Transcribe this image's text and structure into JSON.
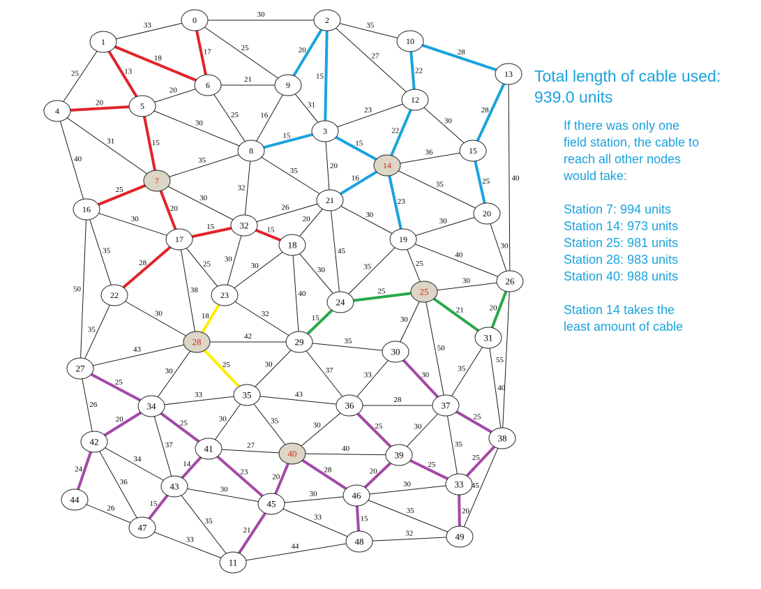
{
  "colors": {
    "red": "#e0242a",
    "blue": "#1aa3dd",
    "green": "#2aa84a",
    "purple": "#a24aa6",
    "yellow": "#ffee00",
    "station_fill": "#dcd6c6",
    "station_text": "#e02020",
    "panel_text": "#1aa3dd"
  },
  "panel": {
    "total_line1": "Total length of cable used:",
    "total_line2": "939.0 units",
    "intro_lines": [
      "If there was only one",
      "field station, the cable to",
      "reach all other nodes",
      "would take:"
    ],
    "stations": [
      "Station 7: 994 units",
      "Station 14: 973 units",
      "Station 25: 981 units",
      "Station 28: 983 units",
      "Station 40: 988 units"
    ],
    "conclusion_lines": [
      "Station 14 takes the",
      "least amount of cable"
    ]
  },
  "nodes": [
    {
      "id": "0",
      "label": "0"
    },
    {
      "id": "1",
      "label": "1"
    },
    {
      "id": "2",
      "label": "2"
    },
    {
      "id": "3",
      "label": "3"
    },
    {
      "id": "4",
      "label": "4"
    },
    {
      "id": "5",
      "label": "5"
    },
    {
      "id": "6",
      "label": "6"
    },
    {
      "id": "7",
      "label": "7",
      "station": true
    },
    {
      "id": "8",
      "label": "8"
    },
    {
      "id": "9",
      "label": "9"
    },
    {
      "id": "10",
      "label": "10"
    },
    {
      "id": "11",
      "label": "11"
    },
    {
      "id": "12",
      "label": "12"
    },
    {
      "id": "13",
      "label": "13"
    },
    {
      "id": "14",
      "label": "14",
      "station": true
    },
    {
      "id": "15",
      "label": "15"
    },
    {
      "id": "16",
      "label": "16"
    },
    {
      "id": "17",
      "label": "17"
    },
    {
      "id": "18",
      "label": "18"
    },
    {
      "id": "19",
      "label": "19"
    },
    {
      "id": "20",
      "label": "20"
    },
    {
      "id": "21",
      "label": "21"
    },
    {
      "id": "22",
      "label": "22"
    },
    {
      "id": "23",
      "label": "23"
    },
    {
      "id": "24",
      "label": "24"
    },
    {
      "id": "25",
      "label": "25",
      "station": true
    },
    {
      "id": "26",
      "label": "26"
    },
    {
      "id": "27",
      "label": "27"
    },
    {
      "id": "28",
      "label": "28",
      "station": true
    },
    {
      "id": "29",
      "label": "29"
    },
    {
      "id": "30",
      "label": "30"
    },
    {
      "id": "31",
      "label": "31"
    },
    {
      "id": "32",
      "label": "32"
    },
    {
      "id": "33",
      "label": "33"
    },
    {
      "id": "34",
      "label": "34"
    },
    {
      "id": "35",
      "label": "35"
    },
    {
      "id": "36",
      "label": "36"
    },
    {
      "id": "37",
      "label": "37"
    },
    {
      "id": "38",
      "label": "38"
    },
    {
      "id": "39",
      "label": "39"
    },
    {
      "id": "40",
      "label": "40",
      "station": true
    },
    {
      "id": "41",
      "label": "41"
    },
    {
      "id": "42",
      "label": "42"
    },
    {
      "id": "43",
      "label": "43"
    },
    {
      "id": "44",
      "label": "44"
    },
    {
      "id": "45",
      "label": "45"
    },
    {
      "id": "46",
      "label": "46"
    },
    {
      "id": "47",
      "label": "47"
    },
    {
      "id": "48",
      "label": "48"
    },
    {
      "id": "49",
      "label": "49"
    }
  ],
  "edges": [
    {
      "a": "0",
      "b": "1",
      "w": "33"
    },
    {
      "a": "0",
      "b": "2",
      "w": "30"
    },
    {
      "a": "0",
      "b": "6",
      "w": "17",
      "color": "red"
    },
    {
      "a": "0",
      "b": "9",
      "w": "25"
    },
    {
      "a": "1",
      "b": "4",
      "w": "25"
    },
    {
      "a": "1",
      "b": "5",
      "w": "13",
      "color": "red"
    },
    {
      "a": "1",
      "b": "6",
      "w": "18",
      "color": "red"
    },
    {
      "a": "2",
      "b": "9",
      "w": "20",
      "color": "blue"
    },
    {
      "a": "2",
      "b": "3",
      "w": "15",
      "color": "blue"
    },
    {
      "a": "2",
      "b": "10",
      "w": "35"
    },
    {
      "a": "2",
      "b": "12",
      "w": "27"
    },
    {
      "a": "4",
      "b": "5",
      "w": "20",
      "color": "red"
    },
    {
      "a": "4",
      "b": "7",
      "w": "31"
    },
    {
      "a": "4",
      "b": "16",
      "w": "40"
    },
    {
      "a": "5",
      "b": "6",
      "w": "20"
    },
    {
      "a": "5",
      "b": "7",
      "w": "15",
      "color": "red"
    },
    {
      "a": "5",
      "b": "8",
      "w": "30"
    },
    {
      "a": "6",
      "b": "9",
      "w": "21"
    },
    {
      "a": "6",
      "b": "8",
      "w": "25"
    },
    {
      "a": "9",
      "b": "8",
      "w": "16"
    },
    {
      "a": "9",
      "b": "3",
      "w": "31"
    },
    {
      "a": "10",
      "b": "13",
      "w": "28",
      "color": "blue"
    },
    {
      "a": "10",
      "b": "12",
      "w": "22",
      "color": "blue"
    },
    {
      "a": "3",
      "b": "12",
      "w": "23"
    },
    {
      "a": "3",
      "b": "8",
      "w": "15",
      "color": "blue"
    },
    {
      "a": "3",
      "b": "14",
      "w": "15",
      "color": "blue"
    },
    {
      "a": "3",
      "b": "21",
      "w": "20"
    },
    {
      "a": "12",
      "b": "14",
      "w": "22",
      "color": "blue"
    },
    {
      "a": "12",
      "b": "15",
      "w": "30"
    },
    {
      "a": "13",
      "b": "15",
      "w": "28",
      "color": "blue"
    },
    {
      "a": "13",
      "b": "26",
      "w": "40"
    },
    {
      "a": "14",
      "b": "15",
      "w": "36"
    },
    {
      "a": "14",
      "b": "21",
      "w": "16",
      "color": "blue"
    },
    {
      "a": "14",
      "b": "19",
      "w": "23",
      "color": "blue"
    },
    {
      "a": "14",
      "b": "20",
      "w": "35"
    },
    {
      "a": "15",
      "b": "20",
      "w": "25",
      "color": "blue"
    },
    {
      "a": "8",
      "b": "7",
      "w": "35"
    },
    {
      "a": "8",
      "b": "21",
      "w": "35"
    },
    {
      "a": "8",
      "b": "32",
      "w": "32"
    },
    {
      "a": "7",
      "b": "16",
      "w": "25",
      "color": "red"
    },
    {
      "a": "7",
      "b": "17",
      "w": "20",
      "color": "red"
    },
    {
      "a": "7",
      "b": "32",
      "w": "30"
    },
    {
      "a": "16",
      "b": "17",
      "w": "30"
    },
    {
      "a": "16",
      "b": "22",
      "w": "35"
    },
    {
      "a": "16",
      "b": "27",
      "w": "50"
    },
    {
      "a": "17",
      "b": "32",
      "w": "15",
      "color": "red"
    },
    {
      "a": "17",
      "b": "22",
      "w": "28",
      "color": "red"
    },
    {
      "a": "17",
      "b": "23",
      "w": "25"
    },
    {
      "a": "17",
      "b": "28",
      "w": "38"
    },
    {
      "a": "32",
      "b": "21",
      "w": "26"
    },
    {
      "a": "32",
      "b": "18",
      "w": "15",
      "color": "red"
    },
    {
      "a": "32",
      "b": "23",
      "w": "30"
    },
    {
      "a": "21",
      "b": "18",
      "w": "20"
    },
    {
      "a": "21",
      "b": "19",
      "w": "30"
    },
    {
      "a": "21",
      "b": "24",
      "w": "45"
    },
    {
      "a": "18",
      "b": "23",
      "w": "30"
    },
    {
      "a": "18",
      "b": "24",
      "w": "30"
    },
    {
      "a": "18",
      "b": "29",
      "w": "40"
    },
    {
      "a": "19",
      "b": "20",
      "w": "30"
    },
    {
      "a": "19",
      "b": "24",
      "w": "35"
    },
    {
      "a": "19",
      "b": "25",
      "w": "25"
    },
    {
      "a": "19",
      "b": "26",
      "w": "40"
    },
    {
      "a": "20",
      "b": "26",
      "w": "30"
    },
    {
      "a": "22",
      "b": "28",
      "w": "30"
    },
    {
      "a": "22",
      "b": "27",
      "w": "35"
    },
    {
      "a": "23",
      "b": "28",
      "w": "18",
      "color": "yellow"
    },
    {
      "a": "23",
      "b": "29",
      "w": "32"
    },
    {
      "a": "24",
      "b": "25",
      "w": "25",
      "color": "green"
    },
    {
      "a": "24",
      "b": "29",
      "w": "15",
      "color": "green"
    },
    {
      "a": "25",
      "b": "26",
      "w": "30"
    },
    {
      "a": "25",
      "b": "31",
      "w": "21",
      "color": "green"
    },
    {
      "a": "25",
      "b": "30",
      "w": "30"
    },
    {
      "a": "25",
      "b": "37",
      "w": "50"
    },
    {
      "a": "26",
      "b": "31",
      "w": "20",
      "color": "green"
    },
    {
      "a": "26",
      "b": "38",
      "w": "55"
    },
    {
      "a": "28",
      "b": "27",
      "w": "43"
    },
    {
      "a": "28",
      "b": "29",
      "w": "42"
    },
    {
      "a": "28",
      "b": "34",
      "w": "30"
    },
    {
      "a": "28",
      "b": "35",
      "w": "25",
      "color": "yellow"
    },
    {
      "a": "29",
      "b": "30",
      "w": "35"
    },
    {
      "a": "29",
      "b": "35",
      "w": "30"
    },
    {
      "a": "29",
      "b": "36",
      "w": "37"
    },
    {
      "a": "30",
      "b": "36",
      "w": "33"
    },
    {
      "a": "30",
      "b": "37",
      "w": "30",
      "color": "purple"
    },
    {
      "a": "31",
      "b": "37",
      "w": "35"
    },
    {
      "a": "31",
      "b": "38",
      "w": "40"
    },
    {
      "a": "27",
      "b": "34",
      "w": "25",
      "color": "purple"
    },
    {
      "a": "27",
      "b": "42",
      "w": "26"
    },
    {
      "a": "34",
      "b": "35",
      "w": "33"
    },
    {
      "a": "34",
      "b": "42",
      "w": "20",
      "color": "purple"
    },
    {
      "a": "34",
      "b": "41",
      "w": "25",
      "color": "purple"
    },
    {
      "a": "34",
      "b": "43",
      "w": "37"
    },
    {
      "a": "35",
      "b": "36",
      "w": "43"
    },
    {
      "a": "35",
      "b": "41",
      "w": "30"
    },
    {
      "a": "35",
      "b": "40",
      "w": "35"
    },
    {
      "a": "36",
      "b": "37",
      "w": "28"
    },
    {
      "a": "36",
      "b": "40",
      "w": "30"
    },
    {
      "a": "36",
      "b": "39",
      "w": "25",
      "color": "purple"
    },
    {
      "a": "37",
      "b": "38",
      "w": "25",
      "color": "purple"
    },
    {
      "a": "37",
      "b": "39",
      "w": "30"
    },
    {
      "a": "37",
      "b": "33",
      "w": "35"
    },
    {
      "a": "38",
      "b": "33",
      "w": "25",
      "color": "purple"
    },
    {
      "a": "38",
      "b": "49",
      "w": "45"
    },
    {
      "a": "41",
      "b": "40",
      "w": "27"
    },
    {
      "a": "41",
      "b": "43",
      "w": "14",
      "color": "purple"
    },
    {
      "a": "41",
      "b": "45",
      "w": "23",
      "color": "purple"
    },
    {
      "a": "40",
      "b": "39",
      "w": "40"
    },
    {
      "a": "40",
      "b": "45",
      "w": "20",
      "color": "purple"
    },
    {
      "a": "40",
      "b": "46",
      "w": "28",
      "color": "purple"
    },
    {
      "a": "39",
      "b": "33",
      "w": "25",
      "color": "purple"
    },
    {
      "a": "39",
      "b": "46",
      "w": "20",
      "color": "purple"
    },
    {
      "a": "33",
      "b": "46",
      "w": "30"
    },
    {
      "a": "33",
      "b": "49",
      "w": "20",
      "color": "purple"
    },
    {
      "a": "42",
      "b": "43",
      "w": "34"
    },
    {
      "a": "42",
      "b": "47",
      "w": "36"
    },
    {
      "a": "42",
      "b": "44",
      "w": "24",
      "color": "purple"
    },
    {
      "a": "43",
      "b": "45",
      "w": "30"
    },
    {
      "a": "43",
      "b": "47",
      "w": "15",
      "color": "purple"
    },
    {
      "a": "43",
      "b": "11",
      "w": "35"
    },
    {
      "a": "44",
      "b": "47",
      "w": "26"
    },
    {
      "a": "45",
      "b": "46",
      "w": "30"
    },
    {
      "a": "45",
      "b": "48",
      "w": "33"
    },
    {
      "a": "45",
      "b": "11",
      "w": "21",
      "color": "purple"
    },
    {
      "a": "46",
      "b": "48",
      "w": "15",
      "color": "purple"
    },
    {
      "a": "46",
      "b": "49",
      "w": "35"
    },
    {
      "a": "47",
      "b": "11",
      "w": "33"
    },
    {
      "a": "11",
      "b": "48",
      "w": "44"
    },
    {
      "a": "48",
      "b": "49",
      "w": "32"
    }
  ]
}
